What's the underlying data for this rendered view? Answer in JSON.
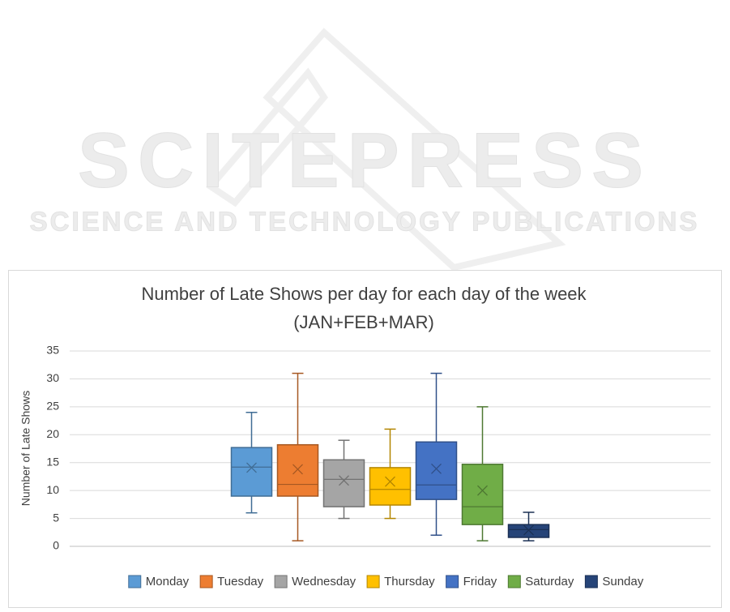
{
  "watermark": {
    "title": "SCITEPRESS",
    "subtitle": "SCIENCE AND TECHNOLOGY PUBLICATIONS"
  },
  "chart_data": {
    "type": "box",
    "title": [
      "Number of Late Shows per day for each day of the week",
      "(JAN+FEB+MAR)"
    ],
    "y_label": "Number of Late Shows",
    "ylim": [
      0,
      35
    ],
    "yticks": [
      0,
      5,
      10,
      15,
      20,
      25,
      30,
      35
    ],
    "grid": true,
    "legend": "bottom",
    "series": [
      {
        "name": "Monday",
        "color": "#5b9bd5",
        "min": 6,
        "q1": 9,
        "median": 14.2,
        "q3": 17.7,
        "max": 24,
        "mean": 14.1
      },
      {
        "name": "Tuesday",
        "color": "#ed7d31",
        "min": 1,
        "q1": 9,
        "median": 11.1,
        "q3": 18.2,
        "max": 31,
        "mean": 13.8
      },
      {
        "name": "Wednesday",
        "color": "#a5a5a5",
        "min": 5,
        "q1": 7.1,
        "median": 12,
        "q3": 15.5,
        "max": 19,
        "mean": 11.8
      },
      {
        "name": "Thursday",
        "color": "#ffc000",
        "min": 5,
        "q1": 7.4,
        "median": 10.2,
        "q3": 14.1,
        "max": 21,
        "mean": 11.6
      },
      {
        "name": "Friday",
        "color": "#4472c4",
        "min": 2,
        "q1": 8.4,
        "median": 11,
        "q3": 18.7,
        "max": 31,
        "mean": 13.9
      },
      {
        "name": "Saturday",
        "color": "#70ad47",
        "min": 1,
        "q1": 3.9,
        "median": 7.1,
        "q3": 14.7,
        "max": 25,
        "mean": 10
      },
      {
        "name": "Sunday",
        "color": "#264478",
        "min": 1,
        "q1": 1.6,
        "median": 3,
        "q3": 3.9,
        "max": 6.1,
        "mean": 2.9
      }
    ]
  }
}
